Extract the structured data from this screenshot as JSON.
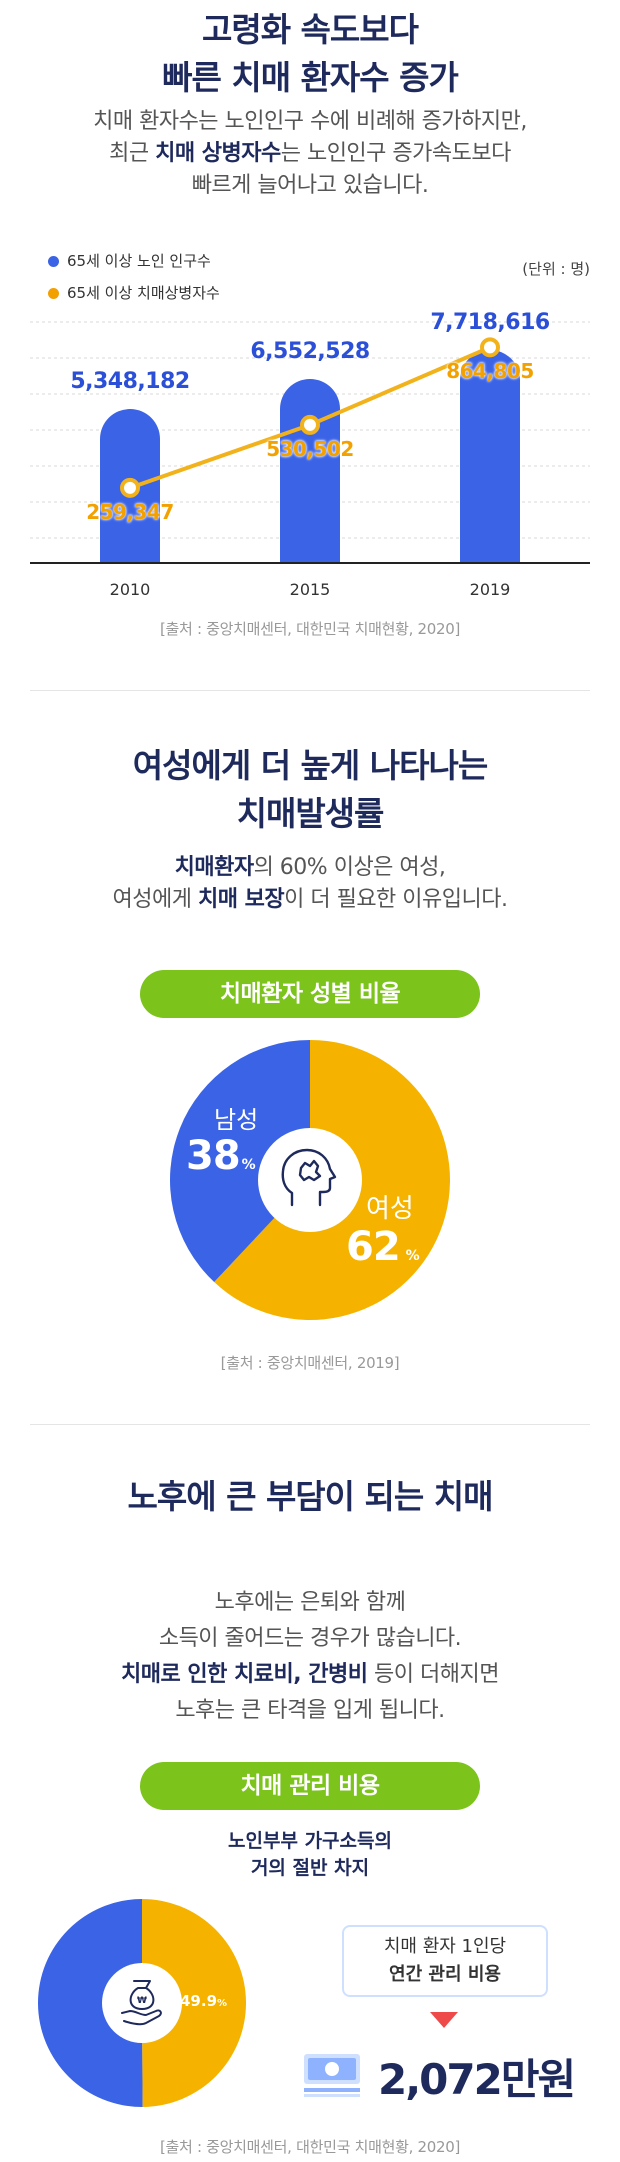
{
  "section1": {
    "title_line1": "고령화 속도보다",
    "title_line2": "빠른 치매 환자수 증가",
    "lead_line1": "치매 환자수는 노인인구 수에 비례해 증가하지만,",
    "lead_line2_pre": "최근 ",
    "lead_line2_bold": "치매 상병자수",
    "lead_line2_post": "는 노인인구 증가속도보다",
    "lead_line3": "빠르게 늘어나고 있습니다.",
    "unit": "(단위 : 명)",
    "source": "[출처 : 중앙치매센터, 대한민국 치매현황, 2020]"
  },
  "chart_data": {
    "type": "bar",
    "categories": [
      "2010",
      "2015",
      "2019"
    ],
    "series": [
      {
        "name": "65세 이상 노인 인구수",
        "values": [
          5348182,
          6552528,
          7718616
        ],
        "color": "#3b63e6"
      },
      {
        "name": "65세 이상 치매상병자수",
        "values": [
          259347,
          530502,
          864805
        ],
        "color": "#f2a100"
      }
    ],
    "value_labels_blue": [
      "5,348,182",
      "6,552,528",
      "7,718,616"
    ],
    "value_labels_orange": [
      "259,347",
      "530,502",
      "864,805"
    ],
    "legend_position": "top-left",
    "grid": true
  },
  "section2": {
    "title_line1": "여성에게 더 높게 나타나는",
    "title_line2": "치매발생률",
    "lead_line1_bold": "치매환자",
    "lead_line1_post": "의 60% 이상은 여성,",
    "lead_line2_pre": "여성에게 ",
    "lead_line2_bold": "치매 보장",
    "lead_line2_post": "이 더 필요한 이유입니다.",
    "pill": "치매환자 성별 비율",
    "male_label": "남성",
    "male_value": "38",
    "female_label": "여성",
    "female_value": "62",
    "percent": "%",
    "male_share": 0.38,
    "female_share": 0.62,
    "color_male": "#3b63e6",
    "color_female": "#f5b300",
    "source": "[출처 : 중앙치매센터, 2019]"
  },
  "section3": {
    "title": "노후에 큰 부담이 되는 치매",
    "lead_line1": "노후에는 은퇴와 함께",
    "lead_line2": "소득이 줄어드는 경우가 많습니다.",
    "lead_line3_bold": "치매로 인한 치료비, 간병비",
    "lead_line3_post": " 등이 더해지면",
    "lead_line4": "노후는 큰 타격을 입게 됩니다.",
    "pill": "치매 관리 비용",
    "sub_line1": "노인부부 가구소득의",
    "sub_line2": "거의 절반 차지",
    "donut_value": "49.9",
    "donut_percent": "%",
    "donut_share": 0.499,
    "box_line1": "치매 환자 1인당",
    "box_line2": "연간 관리 비용",
    "cost": "2,072만원",
    "source": "[출처 : 중앙치매센터, 대한민국 치매현황, 2020]"
  }
}
